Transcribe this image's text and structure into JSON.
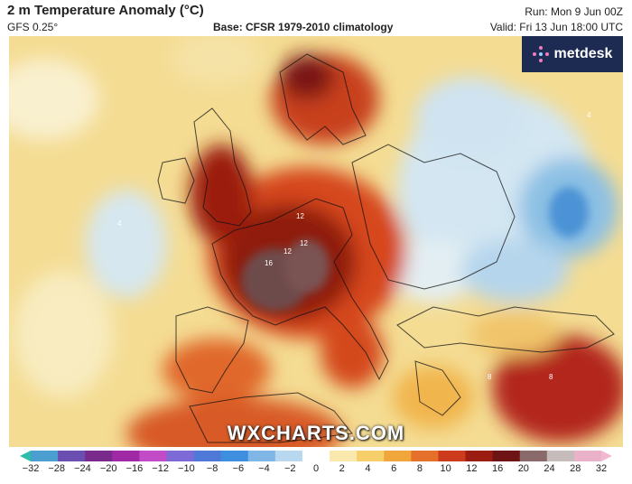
{
  "header": {
    "title": "2 m Temperature Anomaly (°C)",
    "model": "GFS 0.25°",
    "base": "Base: CFSR 1979-2010 climatology",
    "run": "Run: Mon 9 Jun 00Z",
    "valid": "Valid: Fri 13 Jun 18:00 UTC"
  },
  "logo": {
    "text": "metdesk"
  },
  "watermark": "WXCHARTS.COM",
  "map": {
    "contour_labels": [
      "12",
      "16",
      "12",
      "12",
      "8",
      "8",
      "4",
      "4"
    ]
  },
  "colorbar": {
    "ticks": [
      "−32",
      "−28",
      "−24",
      "−20",
      "−16",
      "−12",
      "−10",
      "−8",
      "−6",
      "−4",
      "−2",
      "0",
      "2",
      "4",
      "6",
      "8",
      "10",
      "12",
      "16",
      "20",
      "24",
      "28",
      "32"
    ],
    "colors": [
      "#2bbfa7",
      "#4a9fd0",
      "#6a4fb0",
      "#7a2a8a",
      "#a02aa6",
      "#c24cc8",
      "#7d6ad6",
      "#4e79d9",
      "#3f8fe0",
      "#7fb6e6",
      "#b8d8ef",
      "#ffffff",
      "#fbe8ad",
      "#f6cf6a",
      "#f1a63c",
      "#e5702a",
      "#cc3b1c",
      "#9b1c10",
      "#6e1414",
      "#8a6a6a",
      "#c7bcbc",
      "#e9b2c9",
      "#f4b8d1"
    ]
  }
}
